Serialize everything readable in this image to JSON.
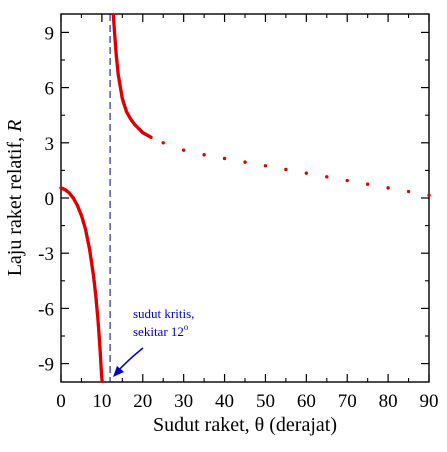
{
  "chart_data": {
    "type": "scatter",
    "xlabel_text": "Sudut raket, ",
    "xlabel_symbol": "θ",
    "xlabel_suffix": " (derajat)",
    "ylabel_text": "Laju raket relatif, ",
    "ylabel_symbol": "R",
    "xlim": [
      0,
      90
    ],
    "ylim": [
      -10,
      10
    ],
    "x_ticks": [
      0,
      10,
      20,
      30,
      40,
      50,
      60,
      70,
      80,
      90
    ],
    "y_ticks": [
      -9,
      -6,
      -3,
      0,
      3,
      6,
      9
    ],
    "y_tick_labels": [
      "-9",
      "-6",
      "-3",
      "0",
      "3",
      "6",
      "9"
    ],
    "grid": false,
    "critical_angle": 12,
    "series": [
      {
        "color": "#dd0000",
        "x": [
          0,
          1,
          2,
          3,
          4,
          5,
          6,
          7,
          8,
          8.5,
          9,
          9.3,
          9.6,
          9.8,
          10,
          10.2,
          10.5,
          12.7,
          13,
          13.5,
          14,
          15,
          16,
          17,
          18,
          20,
          22,
          25,
          30,
          35,
          40,
          45,
          50,
          55,
          60,
          65,
          70,
          75,
          80,
          85,
          90
        ],
        "y": [
          0.55,
          0.45,
          0.28,
          0.0,
          -0.4,
          -0.95,
          -1.7,
          -2.8,
          -4.3,
          -5.3,
          -6.5,
          -7.4,
          -8.4,
          -9.2,
          -9.8,
          -10.3,
          -11.0,
          10.3,
          9.3,
          7.8,
          6.7,
          5.4,
          4.7,
          4.3,
          4.0,
          3.55,
          3.3,
          3.0,
          2.6,
          2.35,
          2.15,
          1.95,
          1.75,
          1.55,
          1.35,
          1.15,
          0.95,
          0.75,
          0.55,
          0.35,
          0.15
        ]
      }
    ],
    "annotation": {
      "line1": "sudut kritis,",
      "line2": "sekitar 12",
      "superscript": "o",
      "color": "#0000cc"
    }
  }
}
